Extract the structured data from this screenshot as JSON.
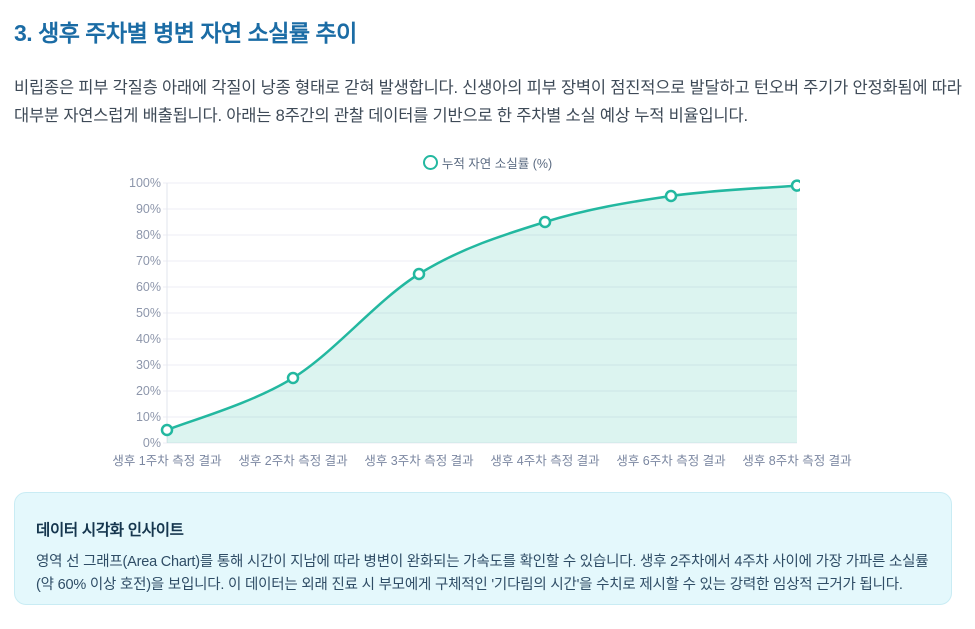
{
  "page": {
    "title": "3. 생후 주차별 병변 자연 소실률 추이",
    "intro": "비립종은 피부 각질층 아래에 각질이 낭종 형태로 갇혀 발생합니다. 신생아의 피부 장벽이 점진적으로 발달하고 턴오버 주기가 안정화됨에 따라 대부분 자연스럽게 배출됩니다. 아래는 8주간의 관찰 데이터를 기반으로 한 주차별 소실 예상 누적 비율입니다."
  },
  "chart_data": {
    "type": "area",
    "legend": "누적 자연 소실률 (%)",
    "legend_position": "top",
    "categories": [
      "생후 1주차 측정 결과",
      "생후 2주차 측정 결과",
      "생후 3주차 측정 결과",
      "생후 4주차 측정 결과",
      "생후 6주차 측정 결과",
      "생후 8주차 측정 결과"
    ],
    "values": [
      5,
      25,
      65,
      85,
      95,
      99
    ],
    "ylim": [
      0,
      100
    ],
    "ytick_step": 10,
    "ytick_suffix": "%",
    "grid": true,
    "line_color": "#23b8a0",
    "fill_color": "rgba(35,184,160,0.16)",
    "point_fill": "#ffffff"
  },
  "insight": {
    "title": "데이터 시각화 인사이트",
    "body": "영역 선 그래프(Area Chart)를 통해 시간이 지남에 따라 병변이 완화되는 가속도를 확인할 수 있습니다. 생후 2주차에서 4주차 사이에 가장 가파른 소실률(약 60% 이상 호전)을 보입니다. 이 데이터는 외래 진료 시 부모에게 구체적인 '기다림의 시간'을 수치로 제시할 수 있는 강력한 임상적 근거가 됩니다."
  },
  "theme": {
    "title_color": "#1b6ca5",
    "accent_teal": "#23b8a0",
    "insight_bg": "#e4f8fc"
  }
}
